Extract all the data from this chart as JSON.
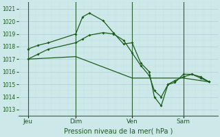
{
  "title": "Pression niveau de la mer( hPa )",
  "bg_color": "#cce8e8",
  "grid_color_major": "#b0d0d8",
  "grid_color_minor": "#c8e0e0",
  "line_color": "#1a5c1a",
  "ylim": [
    1012.5,
    1021.5
  ],
  "yticks": [
    1013,
    1014,
    1015,
    1016,
    1017,
    1018,
    1019,
    1020,
    1021
  ],
  "xlim": [
    -0.15,
    11.5
  ],
  "xtick_labels": [
    "Jeu",
    "Dim",
    "Ven",
    "Sam"
  ],
  "xtick_positions": [
    0.4,
    3.2,
    6.5,
    9.5
  ],
  "vline_positions": [
    0.4,
    3.2,
    6.5,
    9.5
  ],
  "series1_x": [
    0.4,
    1.0,
    1.6,
    3.2,
    3.6,
    4.0,
    4.8,
    5.4,
    6.0,
    6.5,
    7.0,
    7.5,
    7.8,
    8.2,
    8.6,
    9.0,
    9.5,
    10.0,
    10.5,
    11.0
  ],
  "series1_y": [
    1017.8,
    1018.1,
    1018.3,
    1019.0,
    1020.35,
    1020.65,
    1020.05,
    1019.1,
    1018.2,
    1018.3,
    1016.7,
    1016.0,
    1014.0,
    1013.3,
    1015.0,
    1015.15,
    1015.8,
    1015.8,
    1015.5,
    1015.2
  ],
  "series2_x": [
    0.4,
    1.0,
    1.6,
    3.2,
    3.6,
    4.0,
    4.8,
    5.4,
    6.0,
    6.5,
    7.0,
    7.5,
    7.8,
    8.2,
    8.6,
    9.0,
    9.5,
    10.0,
    10.5,
    11.0
  ],
  "series2_y": [
    1017.0,
    1017.4,
    1017.8,
    1018.3,
    1018.6,
    1018.9,
    1019.1,
    1019.0,
    1018.5,
    1017.5,
    1016.5,
    1015.7,
    1014.5,
    1014.0,
    1015.0,
    1015.3,
    1015.6,
    1015.8,
    1015.6,
    1015.2
  ],
  "series3_x": [
    0.4,
    3.2,
    6.5,
    9.5,
    11.0
  ],
  "series3_y": [
    1017.0,
    1017.2,
    1015.5,
    1015.5,
    1015.2
  ]
}
